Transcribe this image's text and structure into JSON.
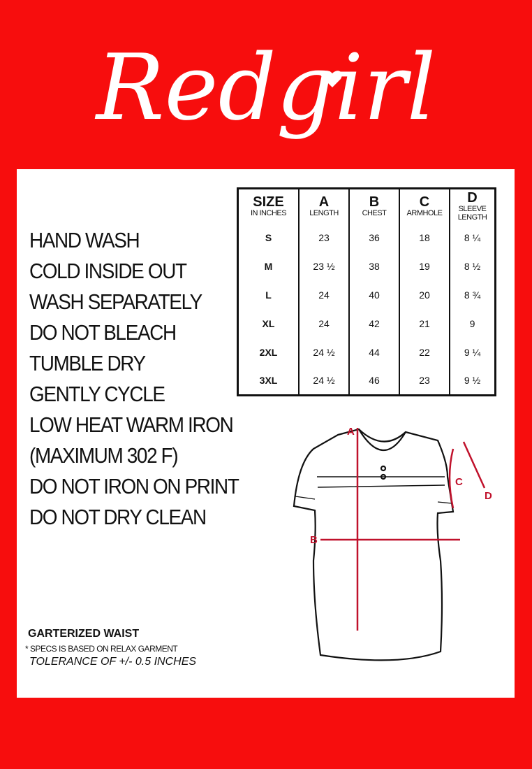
{
  "brand": {
    "logo_text": "Redgirl",
    "background_color": "#f70d0d",
    "accent_color": "#c0112b"
  },
  "size_table": {
    "header": {
      "size_label": "SIZE",
      "unit_label": "IN INCHES",
      "columns": [
        {
          "letter": "A",
          "label": "LENGTH"
        },
        {
          "letter": "B",
          "label": "CHEST"
        },
        {
          "letter": "C",
          "label": "ARMHOLE"
        },
        {
          "letter": "D",
          "label": "SLEEVE LENGTH"
        }
      ]
    },
    "rows": [
      {
        "size": "S",
        "values": [
          "23",
          "36",
          "18",
          "8 ¼"
        ]
      },
      {
        "size": "M",
        "values": [
          "23 ½",
          "38",
          "19",
          "8 ½"
        ]
      },
      {
        "size": "L",
        "values": [
          "24",
          "40",
          "20",
          "8 ¾"
        ]
      },
      {
        "size": "XL",
        "values": [
          "24",
          "42",
          "21",
          "9"
        ]
      },
      {
        "size": "2XL",
        "values": [
          "24 ½",
          "44",
          "22",
          "9 ¼"
        ]
      },
      {
        "size": "3XL",
        "values": [
          "24 ½",
          "46",
          "23",
          "9 ½"
        ]
      }
    ]
  },
  "care_instructions": [
    "HAND WASH",
    "COLD INSIDE OUT",
    "WASH SEPARATELY",
    "DO NOT BLEACH",
    "TUMBLE DRY",
    "GENTLY CYCLE",
    "LOW HEAT WARM IRON",
    "(MAXIMUM 302 F)",
    "DO NOT IRON ON PRINT",
    "DO NOT DRY CLEAN"
  ],
  "notes": {
    "waist": "GARTERIZED WAIST",
    "specs": "* SPECS IS BASED ON RELAX GARMENT",
    "tolerance": "TOLERANCE OF +/- 0.5 INCHES"
  },
  "diagram_labels": {
    "a": "A",
    "b": "B",
    "c": "C",
    "d": "D"
  }
}
